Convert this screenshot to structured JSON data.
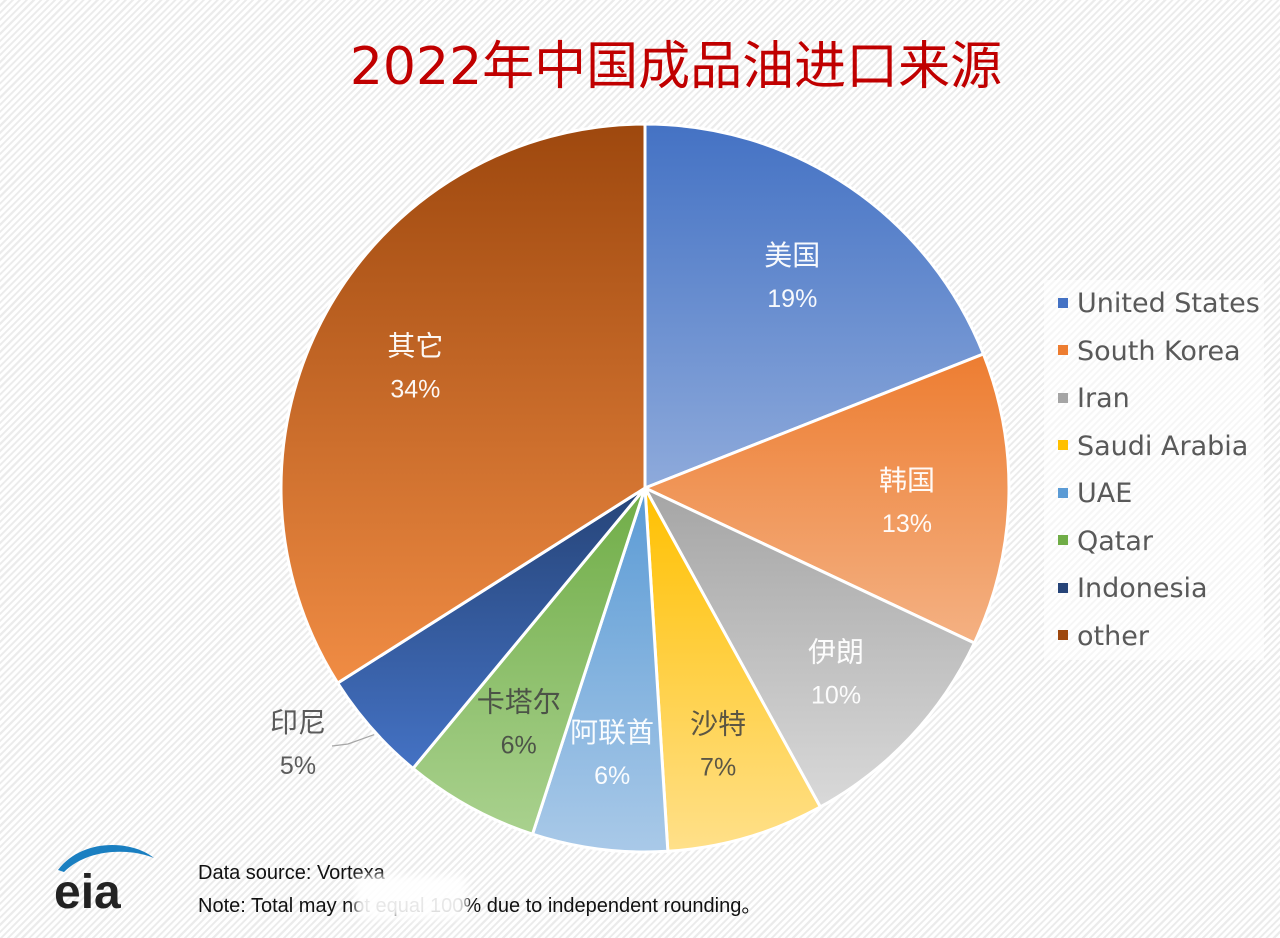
{
  "colors": {
    "United States": [
      "#4472c4",
      "#8eaadb"
    ],
    "South Korea": [
      "#ed7d31",
      "#f4b183"
    ],
    "Iran": [
      "#a5a5a5",
      "#d9d9d9"
    ],
    "Saudi Arabia": [
      "#ffc000",
      "#ffe08a"
    ],
    "UAE": [
      "#5b9bd5",
      "#a9c9e8"
    ],
    "Qatar": [
      "#70ad47",
      "#a9d18e"
    ],
    "Indonesia": [
      "#264478",
      "#4472c4"
    ],
    "other": [
      "#9e480e",
      "#f08c44"
    ],
    "title": "#c00000"
  },
  "chart_data": {
    "type": "pie",
    "title": "2022年中国成品油进口来源",
    "start": "12 o'clock, clockwise",
    "slices": [
      {
        "name": "United States",
        "label": "美国",
        "value": 19,
        "pct_label": "19%"
      },
      {
        "name": "South Korea",
        "label": "韩国",
        "value": 13,
        "pct_label": "13%"
      },
      {
        "name": "Iran",
        "label": "伊朗",
        "value": 10,
        "pct_label": "10%"
      },
      {
        "name": "Saudi Arabia",
        "label": "沙特",
        "value": 7,
        "pct_label": "7%"
      },
      {
        "name": "UAE",
        "label": "阿联酋",
        "value": 6,
        "pct_label": "6%"
      },
      {
        "name": "Qatar",
        "label": "卡塔尔",
        "value": 6,
        "pct_label": "6%"
      },
      {
        "name": "Indonesia",
        "label": "印尼",
        "value": 5,
        "pct_label": "5%"
      },
      {
        "name": "other",
        "label": "其它",
        "value": 34,
        "pct_label": "34%"
      }
    ],
    "legend": [
      "United States",
      "South Korea",
      "Iran",
      "Saudi Arabia",
      "UAE",
      "Qatar",
      "Indonesia",
      "other"
    ],
    "legend_position": "right"
  },
  "footer": {
    "logo_text": "eia",
    "source": "Data source: Vortexa",
    "note": "Note: Total may not equal 100% due to independent rounding。"
  }
}
